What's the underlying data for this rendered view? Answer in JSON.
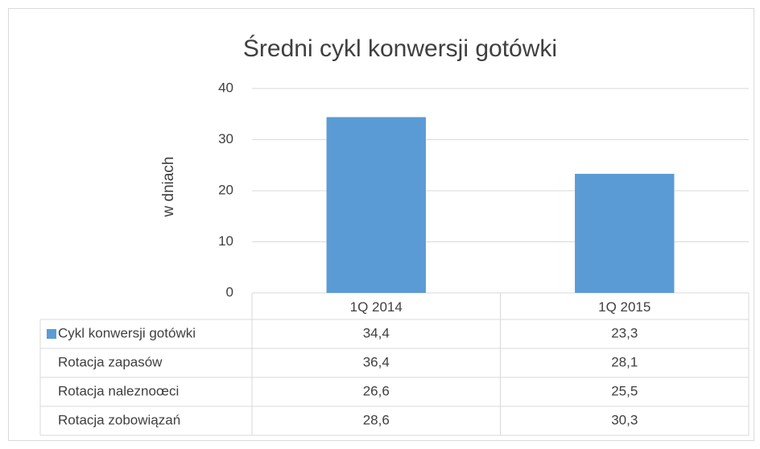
{
  "chart_data": {
    "type": "bar",
    "title": "Średni cykl konwersji gotówki",
    "y_label": "w dniach",
    "categories": [
      "1Q 2014",
      "1Q 2015"
    ],
    "series": [
      {
        "name": "Cykl konwersji gotówki",
        "color": "#5b9bd5",
        "values": [
          34.4,
          23.3
        ],
        "value_labels": [
          "34,4",
          "23,3"
        ]
      },
      {
        "name": "Rotacja zapasów",
        "values": [
          36.4,
          28.1
        ],
        "value_labels": [
          "36,4",
          "28,1"
        ]
      },
      {
        "name": "Rotacja naleznoœci",
        "values": [
          26.6,
          25.5
        ],
        "value_labels": [
          "26,6",
          "25,5"
        ]
      },
      {
        "name": "Rotacja zobowiązań",
        "values": [
          28.6,
          30.3
        ],
        "value_labels": [
          "28,6",
          "30,3"
        ]
      }
    ],
    "ylim": [
      0,
      40
    ],
    "yticks": [
      0,
      10,
      20,
      30,
      40
    ],
    "grid": true
  }
}
